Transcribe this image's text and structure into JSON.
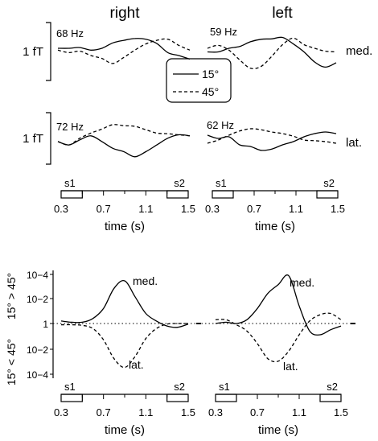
{
  "columns": {
    "right": "right",
    "left": "left"
  },
  "scale_labels": {
    "top": "1 fT",
    "bottom": "1 fT"
  },
  "row_labels": {
    "medial": "med.",
    "lateral": "lat."
  },
  "legend": {
    "entries": [
      "15°",
      "45°"
    ]
  },
  "timebars": {
    "ticks": [
      "0.3",
      "0.7",
      "1.1",
      "1.5"
    ],
    "xlabel": "time (s)",
    "s1": "s1",
    "s2": "s2"
  },
  "colors": {
    "ink": "#000000",
    "background": "#ffffff"
  },
  "chart_data": [
    {
      "type": "line",
      "panel": "right-medial",
      "freq_label": "68 Hz",
      "x": [
        0.3,
        0.4,
        0.5,
        0.6,
        0.7,
        0.8,
        0.9,
        1.0,
        1.1,
        1.2,
        1.3,
        1.4,
        1.5
      ],
      "series": [
        {
          "name": "15°",
          "style": "solid",
          "values": [
            0.0,
            0.0,
            0.02,
            -0.05,
            0.0,
            0.15,
            0.22,
            0.27,
            0.25,
            0.13,
            -0.12,
            -0.2,
            -0.3
          ]
        },
        {
          "name": "45°",
          "style": "dashed",
          "values": [
            -0.05,
            -0.12,
            -0.08,
            -0.2,
            -0.28,
            -0.42,
            -0.25,
            -0.05,
            0.12,
            0.22,
            0.25,
            0.08,
            -0.05
          ]
        }
      ]
    },
    {
      "type": "line",
      "panel": "left-medial",
      "freq_label": "59 Hz",
      "x": [
        0.3,
        0.4,
        0.5,
        0.6,
        0.7,
        0.8,
        0.9,
        1.0,
        1.1,
        1.2,
        1.3,
        1.4,
        1.5
      ],
      "series": [
        {
          "name": "15°",
          "style": "solid",
          "values": [
            -0.1,
            -0.1,
            0.0,
            0.05,
            0.18,
            0.25,
            0.26,
            0.3,
            0.12,
            -0.1,
            -0.38,
            -0.52,
            -0.4
          ]
        },
        {
          "name": "45°",
          "style": "dashed",
          "values": [
            0.0,
            0.08,
            -0.05,
            -0.32,
            -0.55,
            -0.5,
            -0.22,
            0.1,
            0.28,
            0.1,
            0.0,
            -0.08,
            -0.1
          ]
        }
      ]
    },
    {
      "type": "line",
      "panel": "right-lateral",
      "freq_label": "72 Hz",
      "x": [
        0.3,
        0.4,
        0.5,
        0.6,
        0.7,
        0.8,
        0.9,
        1.0,
        1.1,
        1.2,
        1.3,
        1.4,
        1.5
      ],
      "series": [
        {
          "name": "15°",
          "style": "solid",
          "values": [
            0.05,
            -0.05,
            0.1,
            0.22,
            0.05,
            -0.15,
            -0.25,
            -0.4,
            -0.25,
            -0.05,
            0.15,
            0.25,
            0.22
          ]
        },
        {
          "name": "45°",
          "style": "dashed",
          "values": [
            0.05,
            -0.05,
            0.15,
            0.3,
            0.42,
            0.55,
            0.52,
            0.5,
            0.4,
            0.3,
            0.28,
            0.25,
            0.22
          ]
        }
      ]
    },
    {
      "type": "line",
      "panel": "left-lateral",
      "freq_label": "62 Hz",
      "x": [
        0.3,
        0.4,
        0.5,
        0.6,
        0.7,
        0.8,
        0.9,
        1.0,
        1.1,
        1.2,
        1.3,
        1.4,
        1.5
      ],
      "series": [
        {
          "name": "15°",
          "style": "solid",
          "values": [
            0.25,
            0.15,
            0.2,
            -0.05,
            -0.1,
            -0.22,
            -0.18,
            -0.05,
            0.05,
            0.2,
            0.3,
            0.35,
            0.3
          ]
        },
        {
          "name": "45°",
          "style": "dashed",
          "values": [
            0.0,
            0.1,
            0.25,
            0.38,
            0.45,
            0.42,
            0.35,
            0.3,
            0.22,
            0.1,
            0.08,
            0.05,
            0.0
          ]
        }
      ]
    },
    {
      "type": "line",
      "panel": "right-significance",
      "yscale": "log",
      "ylabel_upper": "15° > 45°",
      "ylabel_lower": "15° < 45°",
      "yticks": [
        "10−4",
        "10−2",
        "1",
        "10−2",
        "10−4"
      ],
      "ylim": [
        -4.3,
        4.3
      ],
      "x": [
        0.3,
        0.4,
        0.5,
        0.6,
        0.7,
        0.8,
        0.9,
        1.0,
        1.1,
        1.2,
        1.3,
        1.4,
        1.5
      ],
      "series": [
        {
          "name": "med.",
          "style": "solid",
          "values": [
            0.2,
            0.1,
            0.1,
            0.4,
            1.2,
            2.8,
            3.4,
            2.1,
            0.8,
            0.2,
            -0.2,
            -0.3,
            -0.05
          ]
        },
        {
          "name": "lat.",
          "style": "dashed",
          "values": [
            -0.1,
            -0.1,
            -0.15,
            -0.4,
            -1.3,
            -2.8,
            -3.5,
            -2.6,
            -1.2,
            -0.4,
            -0.05,
            0.0,
            0.0
          ]
        }
      ]
    },
    {
      "type": "line",
      "panel": "left-significance",
      "yscale": "log",
      "ylabel_upper": "15° > 45°",
      "ylabel_lower": "15° < 45°",
      "yticks": [
        "10−4",
        "10−2",
        "1",
        "10−2",
        "10−4"
      ],
      "ylim": [
        -4.3,
        4.3
      ],
      "x": [
        0.3,
        0.4,
        0.5,
        0.6,
        0.7,
        0.8,
        0.9,
        1.0,
        1.1,
        1.2,
        1.3,
        1.4,
        1.5
      ],
      "series": [
        {
          "name": "med.",
          "style": "solid",
          "values": [
            0.0,
            0.1,
            0.0,
            0.3,
            1.2,
            2.4,
            3.1,
            3.8,
            1.4,
            -0.6,
            -0.9,
            -0.5,
            -0.2
          ]
        },
        {
          "name": "lat.",
          "style": "dashed",
          "values": [
            0.3,
            0.3,
            -0.1,
            -0.6,
            -1.6,
            -2.8,
            -3.0,
            -2.2,
            -0.9,
            0.2,
            0.7,
            0.8,
            0.3
          ]
        }
      ]
    }
  ]
}
